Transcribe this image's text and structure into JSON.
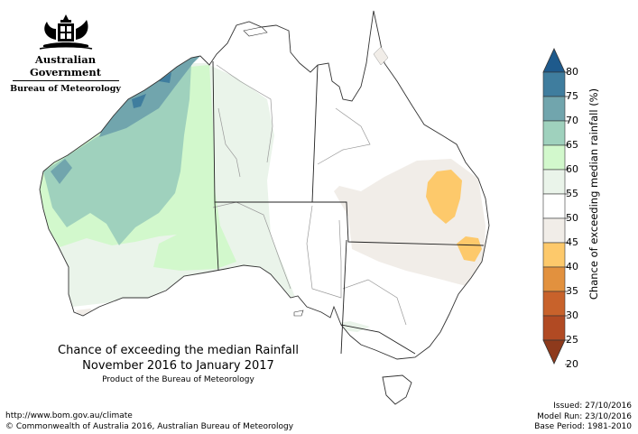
{
  "logo": {
    "government": "Australian Government",
    "agency": "Bureau of Meteorology"
  },
  "title": {
    "line1": "Chance of exceeding the median Rainfall",
    "line2": "November 2016 to January 2017",
    "line3": "Product of the Bureau of Meteorology"
  },
  "footer": {
    "url": "http://www.bom.gov.au/climate",
    "copyright": "© Commonwealth of Australia 2016, Australian Bureau of Meteorology"
  },
  "meta": {
    "issued": "Issued: 27/10/2016",
    "model_run": "Model Run: 23/10/2016",
    "base_period": "Base Period: 1981-2010"
  },
  "colorbar": {
    "title": "Chance of exceeding median rainfall (%)",
    "ticks": [
      "80",
      "75",
      "70",
      "65",
      "60",
      "55",
      "50",
      "45",
      "40",
      "35",
      "30",
      "25",
      "20"
    ],
    "colors": {
      "above_75": "#1e5a8c",
      "70_75": "#3f7d9e",
      "65_70": "#71a5ad",
      "60_65": "#9fd1bd",
      "55_60": "#d2f8cc",
      "50_55": "#eaf4ea",
      "45_50": "#ffffff",
      "40_45": "#f1ede8",
      "35_40": "#fdc96b",
      "30_35": "#e2913e",
      "25_30": "#c8622b",
      "20_25": "#b14a23",
      "below_20": "#8e3a1c"
    }
  }
}
